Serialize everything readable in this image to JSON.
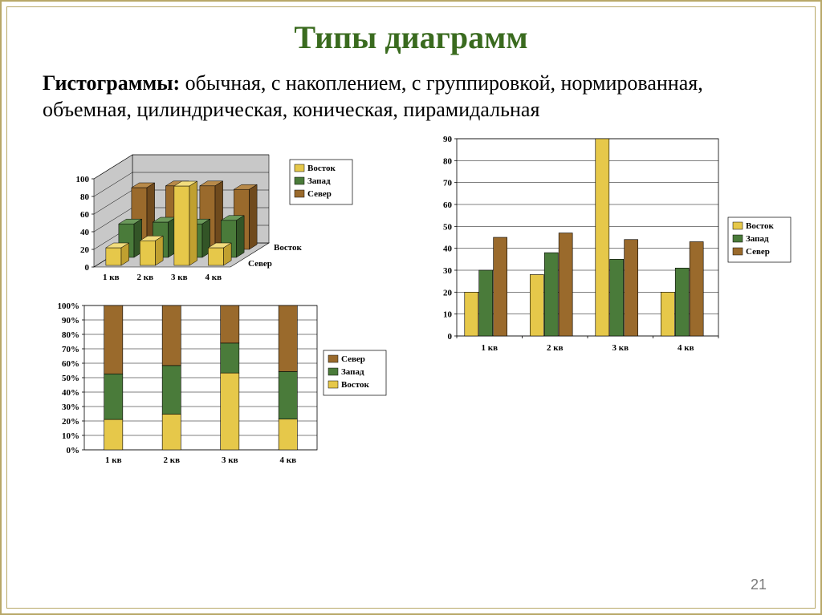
{
  "slide": {
    "title": "Типы диаграмм",
    "title_color": "#3a6b1f",
    "body_bold": "Гистограммы:",
    "body_rest": " обычная, с накоплением, с группировкой, нормированная, объемная, цилиндрическая, коническая, пирамидальная",
    "page_number": "21",
    "frame_color": "#b8a868"
  },
  "categories": [
    "1 кв",
    "2 кв",
    "3 кв",
    "4 кв"
  ],
  "series_names": {
    "east": "Восток",
    "west": "Запад",
    "north": "Север"
  },
  "colors": {
    "east": {
      "front": "#e6c84a",
      "side": "#c0a030",
      "top": "#f2dd7e"
    },
    "west": {
      "front": "#4a7b3a",
      "side": "#335527",
      "top": "#6b995a"
    },
    "north": {
      "front": "#9a6a2c",
      "side": "#6f4a1d",
      "top": "#b88a4a"
    },
    "axis": "#000000",
    "grid": "#000000",
    "bg": "#ffffff",
    "plot_bg_3d_floor": "#c8c8c8",
    "plot_bg_3d_wall": "#c8c8c8"
  },
  "chart3d": {
    "type": "bar-3d-clustered",
    "ylim": [
      0,
      100
    ],
    "ytick_step": 20,
    "values": {
      "east": [
        20,
        28,
        90,
        20
      ],
      "west": [
        38,
        40,
        38,
        42
      ],
      "north": [
        70,
        72,
        72,
        68
      ]
    },
    "depth_labels": [
      "Север",
      "Восток"
    ],
    "legend_order": [
      "east",
      "west",
      "north"
    ]
  },
  "chart2d": {
    "type": "bar-clustered",
    "ylim": [
      0,
      90
    ],
    "ytick_step": 10,
    "values": {
      "east": [
        20,
        28,
        90,
        20
      ],
      "west": [
        30,
        38,
        35,
        31
      ],
      "north": [
        45,
        47,
        44,
        43
      ]
    },
    "legend_order": [
      "east",
      "west",
      "north"
    ],
    "bar_width": 0.22
  },
  "chartStacked": {
    "type": "bar-100pct-stacked",
    "ylim_pct": [
      0,
      100
    ],
    "ytick_step": 10,
    "values": {
      "east": [
        20,
        28,
        90,
        20
      ],
      "west": [
        30,
        38,
        35,
        31
      ],
      "north": [
        45,
        47,
        44,
        43
      ]
    },
    "stack_order_bottom_to_top": [
      "east",
      "west",
      "north"
    ],
    "legend_order_top_to_bottom": [
      "north",
      "west",
      "east"
    ],
    "bar_width": 0.32
  }
}
